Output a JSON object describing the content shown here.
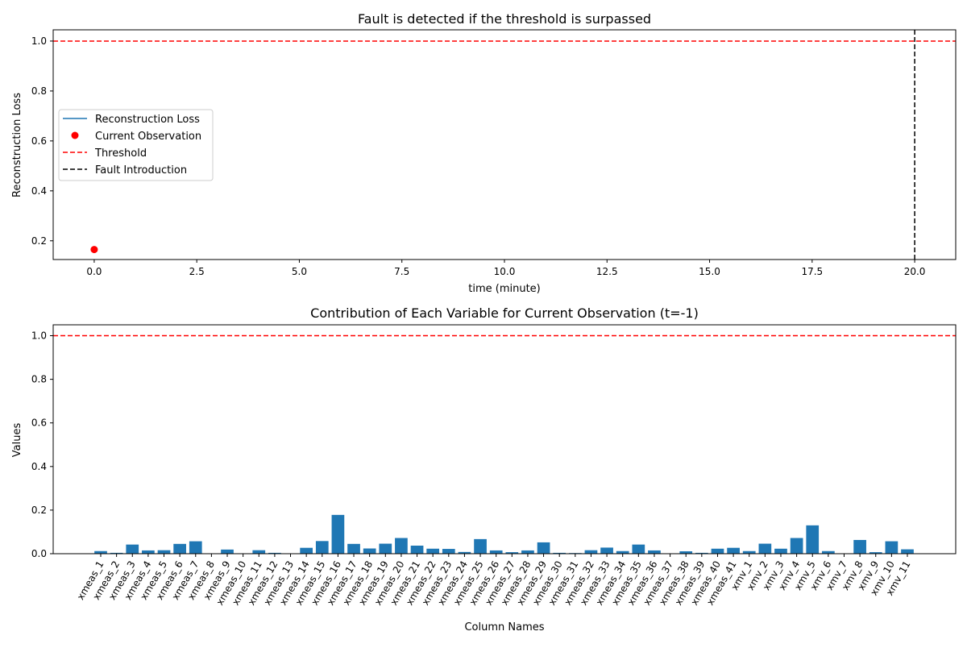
{
  "chart_data": [
    {
      "type": "line",
      "title": "Fault is detected if the threshold is surpassed",
      "xlabel": "time (minute)",
      "ylabel": "Reconstruction Loss",
      "xlim": [
        -1.0,
        21.0
      ],
      "ylim": [
        0.125,
        1.045
      ],
      "xticks": [
        "0.0",
        "2.5",
        "5.0",
        "7.5",
        "10.0",
        "12.5",
        "15.0",
        "17.5",
        "20.0"
      ],
      "yticks": [
        "0.2",
        "0.4",
        "0.6",
        "0.8",
        "1.0"
      ],
      "grid": false,
      "legend_position": "center-left",
      "series": [
        {
          "name": "Reconstruction Loss",
          "kind": "line",
          "color": "#1f77b4",
          "x": [
            0
          ],
          "y": [
            0.165
          ]
        },
        {
          "name": "Current Observation",
          "kind": "scatter",
          "color": "#ff0000",
          "x": [
            0
          ],
          "y": [
            0.165
          ]
        },
        {
          "name": "Threshold",
          "kind": "hline",
          "color": "#ff0000",
          "style": "dashed",
          "y": 1.0
        },
        {
          "name": "Fault Introduction",
          "kind": "vline",
          "color": "#000000",
          "style": "dashed",
          "x": 20
        }
      ]
    },
    {
      "type": "bar",
      "title": "Contribution of Each Variable for Current Observation (t=-1)",
      "xlabel": "Column Names",
      "ylabel": "Values",
      "ylim": [
        0.0,
        1.05
      ],
      "yticks": [
        "0.0",
        "0.2",
        "0.4",
        "0.6",
        "0.8",
        "1.0"
      ],
      "grid": false,
      "threshold": {
        "y": 1.0,
        "color": "#ff0000",
        "style": "dashed"
      },
      "bar_color": "#1f77b4",
      "categories": [
        "xmeas_1",
        "xmeas_2",
        "xmeas_3",
        "xmeas_4",
        "xmeas_5",
        "xmeas_6",
        "xmeas_7",
        "xmeas_8",
        "xmeas_9",
        "xmeas_10",
        "xmeas_11",
        "xmeas_12",
        "xmeas_13",
        "xmeas_14",
        "xmeas_15",
        "xmeas_16",
        "xmeas_17",
        "xmeas_18",
        "xmeas_19",
        "xmeas_20",
        "xmeas_21",
        "xmeas_22",
        "xmeas_23",
        "xmeas_24",
        "xmeas_25",
        "xmeas_26",
        "xmeas_27",
        "xmeas_28",
        "xmeas_29",
        "xmeas_30",
        "xmeas_31",
        "xmeas_32",
        "xmeas_33",
        "xmeas_34",
        "xmeas_35",
        "xmeas_36",
        "xmeas_37",
        "xmeas_38",
        "xmeas_39",
        "xmeas_40",
        "xmeas_41",
        "xmv_1",
        "xmv_2",
        "xmv_3",
        "xmv_4",
        "xmv_5",
        "xmv_6",
        "xmv_7",
        "xmv_8",
        "xmv_9",
        "xmv_10",
        "xmv_11"
      ],
      "values": [
        0.012,
        0.004,
        0.042,
        0.015,
        0.016,
        0.045,
        0.057,
        0.0,
        0.019,
        0.0,
        0.016,
        0.004,
        0.0,
        0.027,
        0.058,
        0.178,
        0.045,
        0.024,
        0.046,
        0.072,
        0.037,
        0.023,
        0.022,
        0.008,
        0.067,
        0.015,
        0.007,
        0.015,
        0.052,
        0.004,
        0.003,
        0.016,
        0.028,
        0.012,
        0.042,
        0.015,
        0.0,
        0.011,
        0.004,
        0.023,
        0.027,
        0.012,
        0.046,
        0.023,
        0.072,
        0.13,
        0.012,
        0.0,
        0.063,
        0.007,
        0.057,
        0.02
      ]
    }
  ]
}
